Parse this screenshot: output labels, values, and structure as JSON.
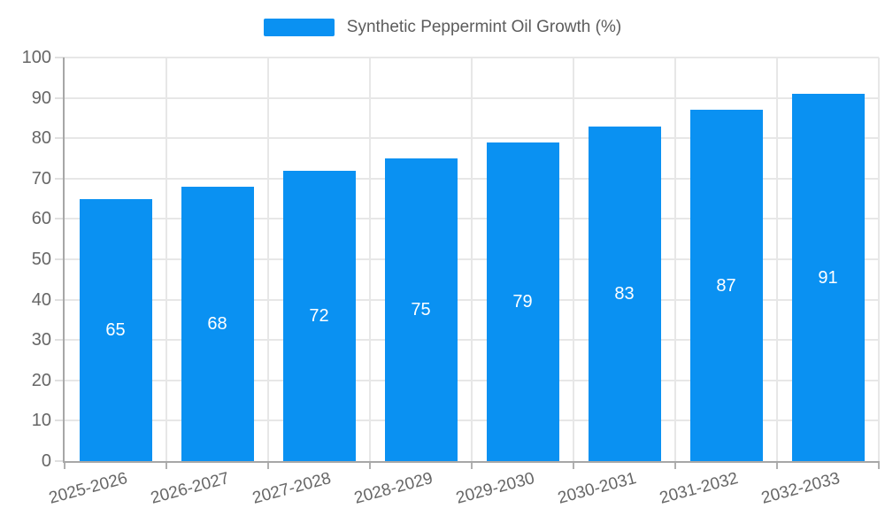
{
  "chart_data": {
    "type": "bar",
    "title": "",
    "series_name": "Synthetic Peppermint Oil Growth (%)",
    "categories": [
      "2025-2026",
      "2026-2027",
      "2027-2028",
      "2028-2029",
      "2029-2030",
      "2030-2031",
      "2031-2032",
      "2032-2033"
    ],
    "values": [
      65,
      68,
      72,
      75,
      79,
      83,
      87,
      91
    ],
    "xlabel": "",
    "ylabel": "",
    "ylim": [
      0,
      100
    ],
    "yticks": [
      0,
      10,
      20,
      30,
      40,
      50,
      60,
      70,
      80,
      90,
      100
    ],
    "grid": true,
    "legend_position": "top-center",
    "value_labels": "inside-center",
    "bar_color": "#0a91f2",
    "value_label_color": "#ffffff",
    "axis_text_color": "#666666",
    "grid_color": "#e7e7e7",
    "axis_line_color": "#a7a7a7"
  }
}
